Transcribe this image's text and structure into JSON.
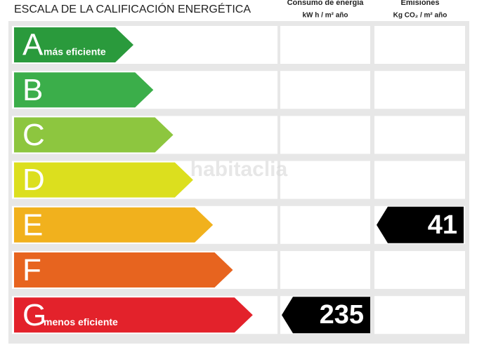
{
  "header": {
    "title": "ESCALA DE LA CALIFICACIÓN ENERGÉTICA",
    "consumption": {
      "title": "Consumo de energía",
      "unit": "kW h / m² año"
    },
    "emissions": {
      "title": "Emisiones",
      "unit": "Kg CO₂ / m² año"
    }
  },
  "watermark": "habitaclia",
  "rows": [
    {
      "letter": "A",
      "label": "más eficiente",
      "color": "#2a9a3c"
    },
    {
      "letter": "B",
      "color": "#3bae4a"
    },
    {
      "letter": "C",
      "color": "#8dc63f"
    },
    {
      "letter": "D",
      "color": "#dcdf1e"
    },
    {
      "letter": "E",
      "color": "#f1b11d",
      "emissions": 41
    },
    {
      "letter": "F",
      "color": "#e7641f"
    },
    {
      "letter": "G",
      "label": "menos eficiente",
      "color": "#e3222b",
      "consumption": 235
    }
  ]
}
